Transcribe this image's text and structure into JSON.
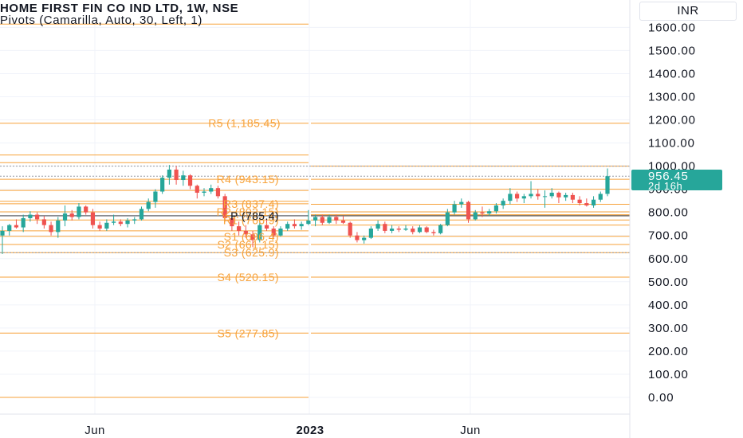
{
  "header": {
    "symbol_title": "HOME FIRST FIN CO IND LTD, 1W, NSE",
    "indicator_title": "Pivots (Camarilla, Auto, 30, Left, 1)",
    "currency": "INR"
  },
  "price_label": {
    "price": "956.45",
    "countdown": "2d 16h"
  },
  "colors": {
    "up": "#26a69a",
    "down": "#ef5350",
    "pivot": "#f7a23a",
    "pivot_text": "#f7a23a",
    "price_label_bg": "#26a69a",
    "grid": "#f0f3fa",
    "axis_text": "#131722",
    "dotted": "#9598a1"
  },
  "chart_data": {
    "type": "candlestick",
    "title": "HOME FIRST FIN CO IND LTD, 1W, NSE",
    "ylabel": "INR",
    "ylim": [
      -70,
      1700
    ],
    "y_ticks": [
      "1600.00",
      "1500.00",
      "1400.00",
      "1300.00",
      "1200.00",
      "1100.00",
      "1000.00",
      "900.00",
      "800.00",
      "700.00",
      "600.00",
      "500.00",
      "400.00",
      "300.00",
      "200.00",
      "100.00",
      "0.00"
    ],
    "x_ticks": [
      "Jun",
      "2023",
      "Jun"
    ],
    "grid": true,
    "last_price": 956.45,
    "pivots": [
      {
        "labels": [
          {
            "label": "R5 (1,185.45)",
            "value": 1185.45
          },
          {
            "label": "R4 (943.15)",
            "value": 943.15
          },
          {
            "label": "R3 (837.4)",
            "value": 837.4
          },
          {
            "label": "R2 (802.15)",
            "value": 802.15
          },
          {
            "label": "R1 (766.9)",
            "value": 766.9
          },
          {
            "label": "P (785.4)",
            "value": 785.4
          },
          {
            "label": "S1 (696.4)",
            "value": 696.4
          },
          {
            "label": "S2 (661.15)",
            "value": 661.15
          },
          {
            "label": "S3 (625.9)",
            "value": 625.9
          },
          {
            "label": "S4 (520.15)",
            "value": 520.15
          },
          {
            "label": "S5 (277.85)",
            "value": 277.85
          }
        ],
        "levels": [
          1614,
          1185.45,
          1048,
          1015,
          943.15,
          895,
          848,
          837.4,
          802.15,
          766.9,
          720,
          696.4,
          661.15,
          625.9,
          520.15,
          277.85,
          0
        ]
      },
      {
        "labels": [],
        "levels": [
          1185.45,
          1000,
          943.15,
          900,
          835,
          802.15,
          790,
          785.4,
          766.9,
          745,
          696.4,
          661.15,
          625.9,
          520.15,
          277.85
        ]
      }
    ],
    "candles": [
      {
        "o": 700,
        "h": 740,
        "l": 620,
        "c": 720
      },
      {
        "o": 720,
        "h": 750,
        "l": 700,
        "c": 745
      },
      {
        "o": 745,
        "h": 770,
        "l": 730,
        "c": 735
      },
      {
        "o": 735,
        "h": 790,
        "l": 715,
        "c": 775
      },
      {
        "o": 775,
        "h": 805,
        "l": 760,
        "c": 790
      },
      {
        "o": 790,
        "h": 800,
        "l": 750,
        "c": 770
      },
      {
        "o": 770,
        "h": 785,
        "l": 730,
        "c": 745
      },
      {
        "o": 745,
        "h": 760,
        "l": 700,
        "c": 715
      },
      {
        "o": 715,
        "h": 780,
        "l": 690,
        "c": 765
      },
      {
        "o": 765,
        "h": 830,
        "l": 740,
        "c": 795
      },
      {
        "o": 795,
        "h": 810,
        "l": 765,
        "c": 780
      },
      {
        "o": 780,
        "h": 840,
        "l": 770,
        "c": 825
      },
      {
        "o": 825,
        "h": 830,
        "l": 790,
        "c": 800
      },
      {
        "o": 800,
        "h": 815,
        "l": 730,
        "c": 745
      },
      {
        "o": 745,
        "h": 760,
        "l": 720,
        "c": 730
      },
      {
        "o": 730,
        "h": 770,
        "l": 720,
        "c": 755
      },
      {
        "o": 755,
        "h": 790,
        "l": 745,
        "c": 760
      },
      {
        "o": 760,
        "h": 770,
        "l": 740,
        "c": 750
      },
      {
        "o": 750,
        "h": 775,
        "l": 735,
        "c": 765
      },
      {
        "o": 765,
        "h": 780,
        "l": 750,
        "c": 770
      },
      {
        "o": 770,
        "h": 825,
        "l": 765,
        "c": 815
      },
      {
        "o": 815,
        "h": 860,
        "l": 805,
        "c": 845
      },
      {
        "o": 845,
        "h": 900,
        "l": 820,
        "c": 890
      },
      {
        "o": 890,
        "h": 960,
        "l": 880,
        "c": 950
      },
      {
        "o": 950,
        "h": 1005,
        "l": 920,
        "c": 985
      },
      {
        "o": 985,
        "h": 1000,
        "l": 920,
        "c": 940
      },
      {
        "o": 940,
        "h": 980,
        "l": 915,
        "c": 960
      },
      {
        "o": 960,
        "h": 965,
        "l": 900,
        "c": 915
      },
      {
        "o": 915,
        "h": 920,
        "l": 860,
        "c": 885
      },
      {
        "o": 885,
        "h": 905,
        "l": 870,
        "c": 890
      },
      {
        "o": 890,
        "h": 920,
        "l": 880,
        "c": 905
      },
      {
        "o": 905,
        "h": 915,
        "l": 860,
        "c": 870
      },
      {
        "o": 870,
        "h": 880,
        "l": 760,
        "c": 775
      },
      {
        "o": 775,
        "h": 790,
        "l": 720,
        "c": 740
      },
      {
        "o": 740,
        "h": 760,
        "l": 700,
        "c": 720
      },
      {
        "o": 720,
        "h": 745,
        "l": 690,
        "c": 705
      },
      {
        "o": 705,
        "h": 720,
        "l": 650,
        "c": 680
      },
      {
        "o": 680,
        "h": 760,
        "l": 670,
        "c": 745
      },
      {
        "o": 745,
        "h": 770,
        "l": 720,
        "c": 730
      },
      {
        "o": 730,
        "h": 740,
        "l": 690,
        "c": 700
      },
      {
        "o": 700,
        "h": 740,
        "l": 695,
        "c": 730
      },
      {
        "o": 730,
        "h": 760,
        "l": 720,
        "c": 750
      },
      {
        "o": 750,
        "h": 770,
        "l": 730,
        "c": 740
      },
      {
        "o": 740,
        "h": 760,
        "l": 725,
        "c": 750
      },
      {
        "o": 750,
        "h": 810,
        "l": 745,
        "c": 765
      },
      {
        "o": 765,
        "h": 790,
        "l": 740,
        "c": 780
      },
      {
        "o": 780,
        "h": 790,
        "l": 745,
        "c": 755
      },
      {
        "o": 755,
        "h": 790,
        "l": 750,
        "c": 780
      },
      {
        "o": 780,
        "h": 790,
        "l": 750,
        "c": 765
      },
      {
        "o": 765,
        "h": 785,
        "l": 750,
        "c": 755
      },
      {
        "o": 755,
        "h": 760,
        "l": 690,
        "c": 700
      },
      {
        "o": 700,
        "h": 715,
        "l": 670,
        "c": 680
      },
      {
        "o": 680,
        "h": 700,
        "l": 665,
        "c": 690
      },
      {
        "o": 690,
        "h": 740,
        "l": 685,
        "c": 730
      },
      {
        "o": 730,
        "h": 765,
        "l": 720,
        "c": 750
      },
      {
        "o": 750,
        "h": 760,
        "l": 710,
        "c": 720
      },
      {
        "o": 720,
        "h": 745,
        "l": 710,
        "c": 730
      },
      {
        "o": 730,
        "h": 740,
        "l": 715,
        "c": 725
      },
      {
        "o": 725,
        "h": 745,
        "l": 720,
        "c": 730
      },
      {
        "o": 730,
        "h": 740,
        "l": 705,
        "c": 715
      },
      {
        "o": 715,
        "h": 745,
        "l": 710,
        "c": 735
      },
      {
        "o": 735,
        "h": 740,
        "l": 710,
        "c": 715
      },
      {
        "o": 715,
        "h": 725,
        "l": 700,
        "c": 710
      },
      {
        "o": 710,
        "h": 750,
        "l": 705,
        "c": 745
      },
      {
        "o": 745,
        "h": 815,
        "l": 740,
        "c": 800
      },
      {
        "o": 800,
        "h": 850,
        "l": 790,
        "c": 835
      },
      {
        "o": 835,
        "h": 860,
        "l": 820,
        "c": 845
      },
      {
        "o": 845,
        "h": 850,
        "l": 755,
        "c": 770
      },
      {
        "o": 770,
        "h": 810,
        "l": 765,
        "c": 800
      },
      {
        "o": 800,
        "h": 825,
        "l": 780,
        "c": 795
      },
      {
        "o": 795,
        "h": 815,
        "l": 785,
        "c": 805
      },
      {
        "o": 805,
        "h": 840,
        "l": 795,
        "c": 830
      },
      {
        "o": 830,
        "h": 860,
        "l": 815,
        "c": 850
      },
      {
        "o": 850,
        "h": 905,
        "l": 835,
        "c": 880
      },
      {
        "o": 880,
        "h": 890,
        "l": 845,
        "c": 860
      },
      {
        "o": 860,
        "h": 880,
        "l": 840,
        "c": 870
      },
      {
        "o": 870,
        "h": 935,
        "l": 860,
        "c": 880
      },
      {
        "o": 880,
        "h": 900,
        "l": 855,
        "c": 870
      },
      {
        "o": 870,
        "h": 895,
        "l": 820,
        "c": 870
      },
      {
        "o": 870,
        "h": 905,
        "l": 860,
        "c": 885
      },
      {
        "o": 885,
        "h": 890,
        "l": 840,
        "c": 865
      },
      {
        "o": 865,
        "h": 885,
        "l": 850,
        "c": 875
      },
      {
        "o": 875,
        "h": 885,
        "l": 840,
        "c": 855
      },
      {
        "o": 855,
        "h": 870,
        "l": 830,
        "c": 840
      },
      {
        "o": 840,
        "h": 860,
        "l": 825,
        "c": 830
      },
      {
        "o": 830,
        "h": 870,
        "l": 820,
        "c": 855
      },
      {
        "o": 855,
        "h": 890,
        "l": 845,
        "c": 880
      },
      {
        "o": 880,
        "h": 990,
        "l": 870,
        "c": 956.45
      }
    ]
  }
}
